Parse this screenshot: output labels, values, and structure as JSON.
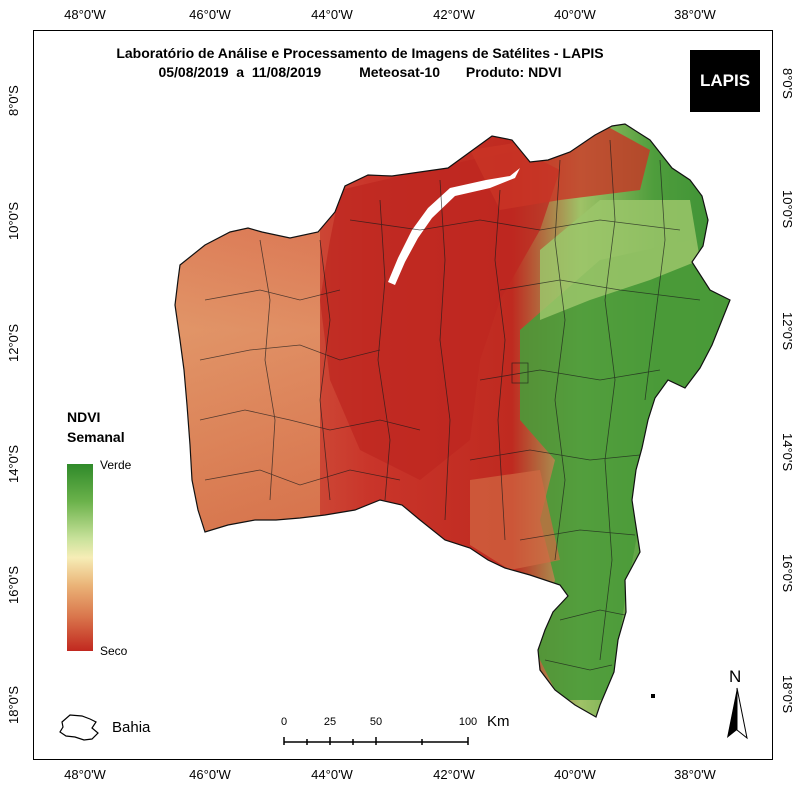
{
  "title": {
    "line1": "Laboratório de Análise e Processamento de Imagens de Satélites - LAPIS",
    "dates": "05/08/2019  a  11/08/2019",
    "satellite": "Meteosat-10",
    "product": "Produto: NDVI"
  },
  "logo_text": "LAPIS",
  "axes": {
    "top_lon": [
      "48°0'W",
      "46°0'W",
      "44°0'W",
      "42°0'W",
      "40°0'W",
      "38°0'W"
    ],
    "bottom_lon": [
      "48°0'W",
      "46°0'W",
      "44°0'W",
      "42°0'W",
      "40°0'W",
      "38°0'W"
    ],
    "left_lat": [
      "8°0'S",
      "10°0'S",
      "12°0'S",
      "14°0'S",
      "16°0'S",
      "18°0'S"
    ],
    "right_lat": [
      "8°0'S",
      "10°0'S",
      "12°0'S",
      "14°0'S",
      "16°0'S",
      "18°0'S"
    ]
  },
  "legend": {
    "title_line1": "NDVI",
    "title_line2": "Semanal",
    "top_label": "Verde",
    "bottom_label": "Seco",
    "colors": [
      "#2f8a2a",
      "#6bb24b",
      "#c9e29b",
      "#f6edb6",
      "#eab377",
      "#d9744b",
      "#c1281f"
    ]
  },
  "inset": {
    "label": "Bahia"
  },
  "scale_bar": {
    "ticks": [
      "0",
      "25",
      "50",
      "100"
    ],
    "unit": "Km"
  },
  "north_arrow": {
    "label": "N"
  }
}
